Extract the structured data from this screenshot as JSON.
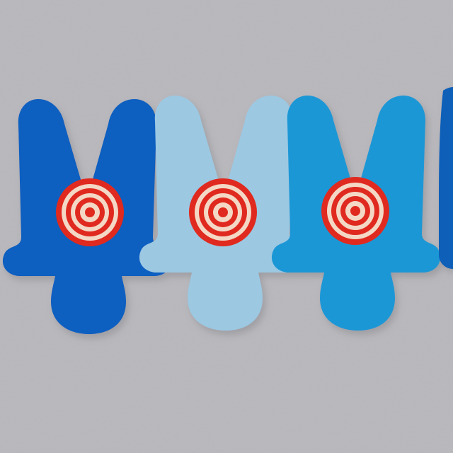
{
  "scene": {
    "description_items": [
      {
        "name": "figure-dark-blue",
        "color": "#0f5ec0"
      },
      {
        "name": "figure-light-blue",
        "color": "#9cc8e2"
      },
      {
        "name": "figure-mid-blue",
        "color": "#1a97d6"
      },
      {
        "name": "figure-edge-blue",
        "color": "#0b5fb8"
      }
    ],
    "background": "#b9b8bd",
    "target_colors": {
      "red": "#e02a1f",
      "cream": "#f4d8c6"
    }
  }
}
